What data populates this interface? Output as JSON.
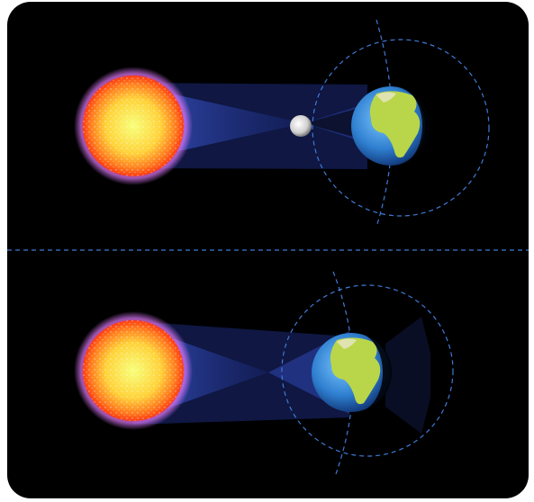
{
  "diagram": {
    "panels": [
      {
        "id": "solar-eclipse",
        "bodies": [
          "sun",
          "moon",
          "earth"
        ]
      },
      {
        "id": "lunar-eclipse",
        "bodies": [
          "sun",
          "earth"
        ]
      }
    ],
    "colors": {
      "background": "#000000",
      "divider": "#3f7ad6",
      "orbit": "#3f7ad6",
      "beam": "#3a55c8",
      "sun_core": "#f7ff7a",
      "sun_edge": "#ff3b12",
      "sun_corona": "#e07aff",
      "earth_ocean": "#3a8cd8",
      "earth_land": "#b9d64a",
      "moon": "#d8d8d8"
    }
  }
}
